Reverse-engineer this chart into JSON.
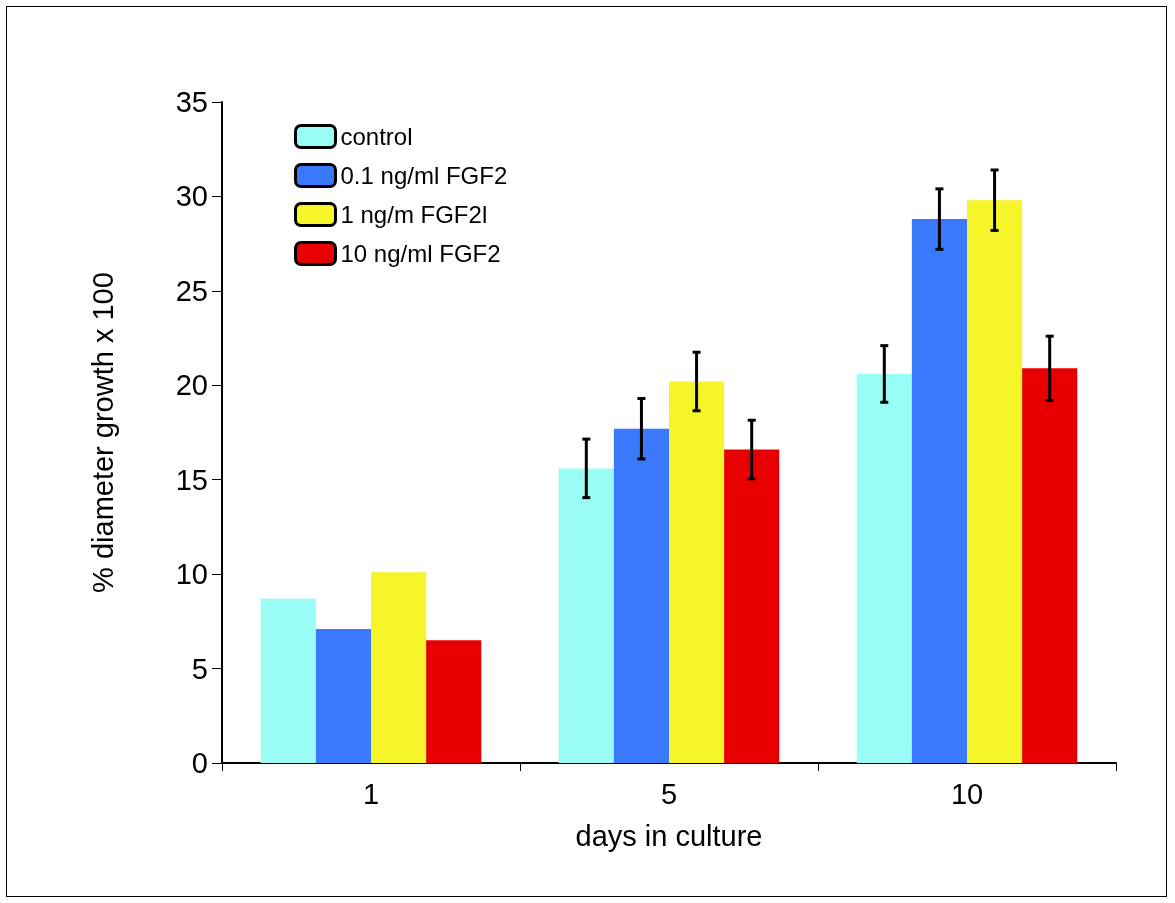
{
  "chart_data": {
    "type": "bar",
    "xlabel": "days in culture",
    "ylabel": "% diameter growth x 100",
    "categories": [
      "1",
      "5",
      "10"
    ],
    "series": [
      {
        "name": "control",
        "color": "#99fcf5",
        "values": [
          8.7,
          15.6,
          20.6
        ],
        "errors": [
          null,
          1.55,
          1.5
        ]
      },
      {
        "name": "0.1 ng/ml FGF2",
        "color": "#3a78fc",
        "values": [
          7.1,
          17.7,
          28.8
        ],
        "errors": [
          null,
          1.6,
          1.6
        ]
      },
      {
        "name": "1 ng/m FGF2l",
        "color": "#f5f52a",
        "values": [
          10.1,
          20.2,
          29.8
        ],
        "errors": [
          null,
          1.55,
          1.6
        ]
      },
      {
        "name": "10 ng/ml FGF2",
        "color": "#e80000",
        "values": [
          6.5,
          16.6,
          20.9
        ],
        "errors": [
          null,
          1.55,
          1.7
        ]
      }
    ],
    "ylim": [
      0,
      35
    ],
    "yticks": [
      0,
      5,
      10,
      15,
      20,
      25,
      30,
      35
    ],
    "grid": false,
    "legend": "top left"
  }
}
